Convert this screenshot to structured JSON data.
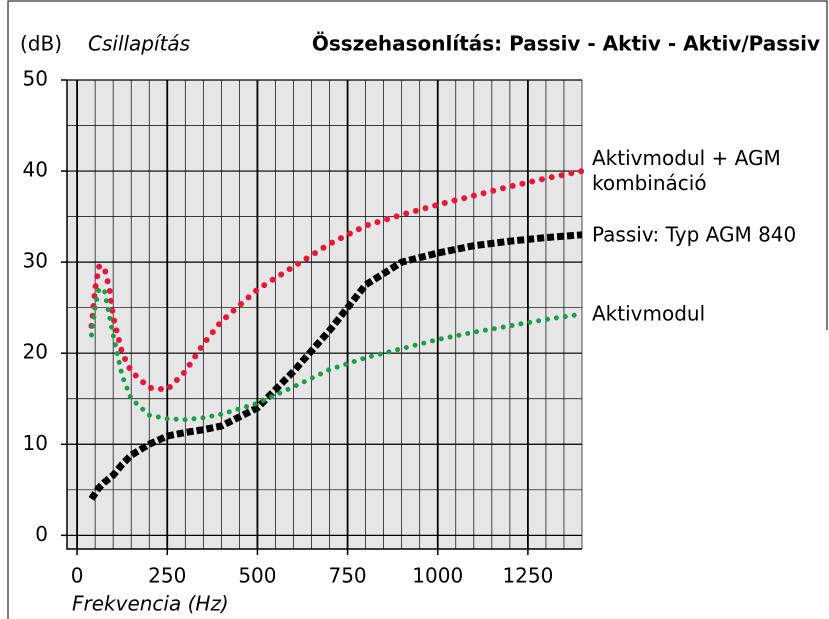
{
  "chart_data": {
    "type": "line",
    "title": "Összehasonlítás: Passiv - Aktiv - Aktiv/Passiv",
    "y_unit": "(dB)",
    "y_label": "Csillapítás",
    "x_label": "Frekvencia (Hz)",
    "x": [
      40,
      50,
      60,
      75,
      90,
      100,
      125,
      150,
      200,
      250,
      300,
      350,
      400,
      500,
      600,
      700,
      800,
      900,
      1000,
      1100,
      1200,
      1300,
      1400
    ],
    "series": [
      {
        "name": "Aktivmodul + AGM kombináció",
        "color": "#e8173a",
        "values": [
          23,
          27,
          29.5,
          29.5,
          27,
          24,
          20,
          18,
          16.2,
          16,
          18,
          21,
          23.5,
          27,
          29.5,
          32,
          34,
          35.2,
          36.3,
          37.3,
          38.3,
          39.2,
          40
        ]
      },
      {
        "name": "Passiv: Typ AGM 840",
        "color": "#000000",
        "values": [
          4,
          4.6,
          5.2,
          5.8,
          6.3,
          6.6,
          7.8,
          8.8,
          10,
          10.9,
          11.3,
          11.6,
          12,
          14,
          18,
          22.5,
          27.5,
          30,
          31,
          31.8,
          32.3,
          32.7,
          33
        ]
      },
      {
        "name": "Aktivmodul",
        "color": "#1a9e4a",
        "values": [
          22,
          25,
          27,
          27,
          24,
          22,
          17.5,
          15,
          13.2,
          12.8,
          12.7,
          12.9,
          13.3,
          14.5,
          16.3,
          18.2,
          19.5,
          20.5,
          21.5,
          22.3,
          23,
          23.7,
          24.3
        ]
      }
    ],
    "xlim": [
      -28,
      1400
    ],
    "ylim": [
      -1.5,
      50
    ],
    "xticks": [
      0,
      250,
      500,
      750,
      1000,
      1250
    ],
    "yticks": [
      0,
      10,
      20,
      30,
      40,
      50
    ],
    "grid": true
  }
}
